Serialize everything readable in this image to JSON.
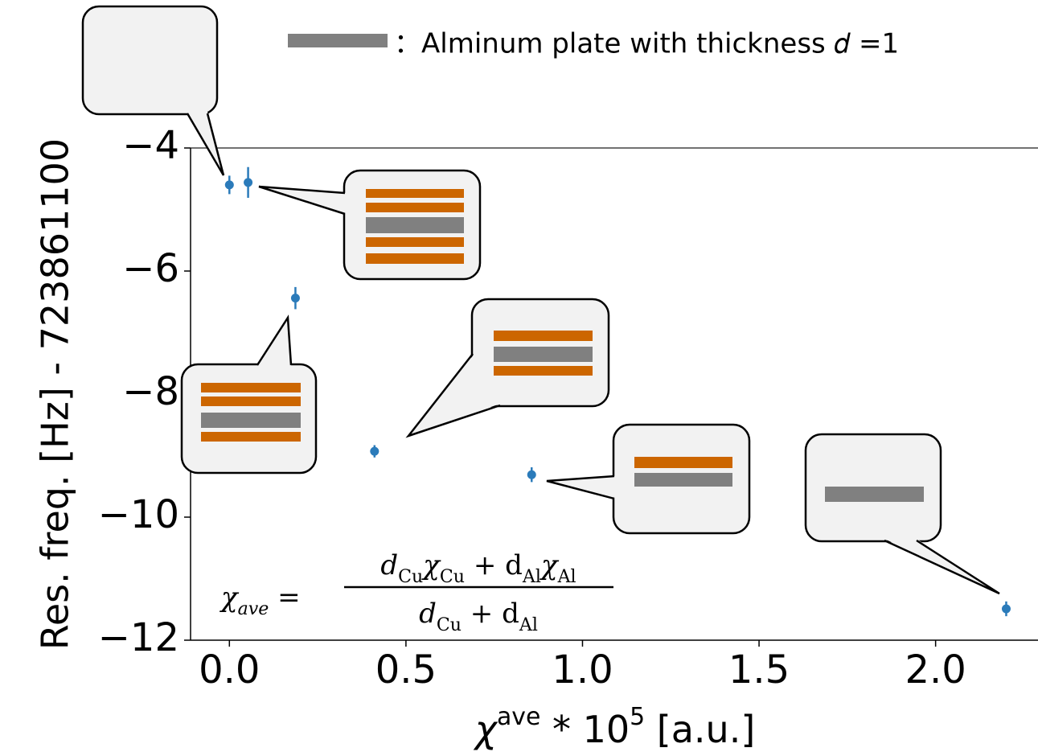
{
  "chart_data": {
    "type": "scatter",
    "legend_text": "：Alminum plate with thickness 𝑑 =1",
    "ylabel": "Res. freq. [Hz] - 723861100",
    "xlabel": [
      "χ",
      "ave",
      " * 10",
      "5",
      " [a.u.]"
    ],
    "formula": {
      "lhs": [
        "χ",
        "ave",
        " ="
      ],
      "numerator": [
        "d",
        "Cu",
        "χ",
        "Cu",
        " + d",
        "Al",
        "χ",
        "Al"
      ],
      "denominator": [
        "d",
        "Cu",
        " + d",
        "Al"
      ]
    },
    "x": [
      0,
      0.053,
      0.187,
      0.411,
      0.856,
      2.2
    ],
    "series": [
      {
        "color": "#2b7bba",
        "values": [
          -4.6,
          -4.56,
          -6.44,
          -8.93,
          -9.31,
          -11.49
        ],
        "errors": [
          0.15,
          0.25,
          0.18,
          0.1,
          0.12,
          0.12
        ]
      }
    ],
    "xlim": [
      -0.11,
      2.29
    ],
    "ylim": [
      -12,
      -4
    ],
    "xticks": [
      {
        "value": 0,
        "label": "0.0"
      },
      0.5,
      {
        "value": 1,
        "label": "1.0"
      },
      1.5,
      {
        "value": 2,
        "label": "2.0"
      }
    ],
    "yticks": [
      {
        "value": -4,
        "label": "−4"
      },
      {
        "value": -6,
        "label": "−6"
      },
      {
        "value": -8,
        "label": "−8"
      },
      {
        "value": -10,
        "label": "−10"
      },
      {
        "value": -12,
        "label": "−12"
      }
    ]
  }
}
